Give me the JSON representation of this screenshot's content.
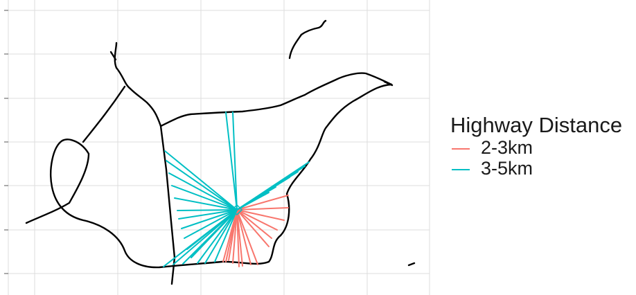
{
  "chart_data": {
    "type": "line",
    "title": "",
    "xlabel": "",
    "ylabel": "",
    "grid": true,
    "legend": {
      "title": "Highway Distance",
      "placement": "right",
      "entries": [
        {
          "label": "2-3km",
          "color": "#F8766D"
        },
        {
          "label": "3-5km",
          "color": "#00BFC4"
        }
      ]
    },
    "series": [
      {
        "name": "2-3km",
        "segments": 14
      },
      {
        "name": "3-5km",
        "segments": 26
      }
    ],
    "highway_color": "#000000"
  }
}
